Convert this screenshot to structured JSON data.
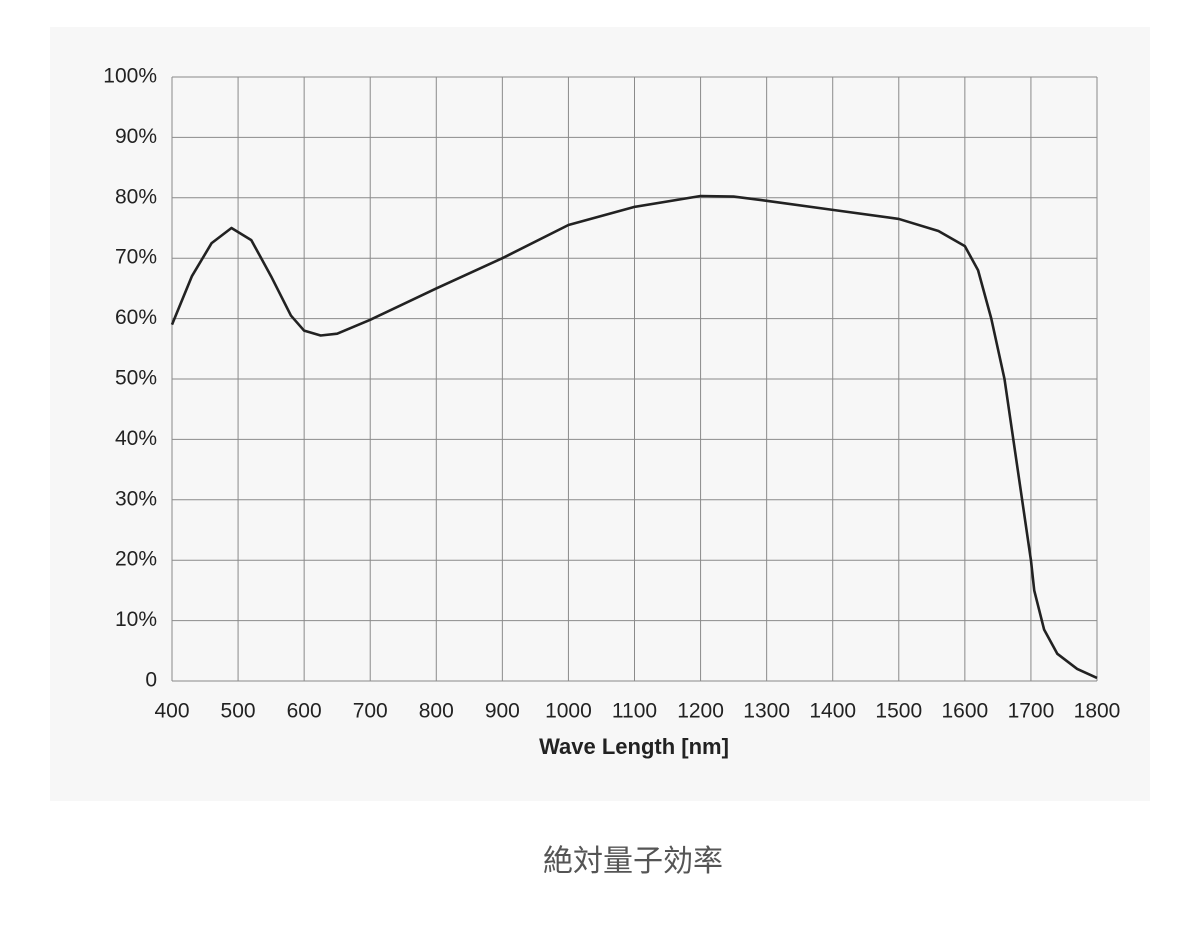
{
  "chart_data": {
    "type": "line",
    "x_label": "Wave Length [nm]",
    "caption": "絶対量子効率",
    "x": [
      400,
      430,
      460,
      490,
      520,
      550,
      580,
      600,
      625,
      650,
      700,
      800,
      900,
      1000,
      1100,
      1200,
      1250,
      1300,
      1400,
      1500,
      1560,
      1600,
      1620,
      1640,
      1660,
      1680,
      1700,
      1705,
      1720,
      1740,
      1770,
      1800
    ],
    "series": [
      {
        "color": "#222222",
        "values": [
          59,
          67,
          72.5,
          75,
          73,
          67,
          60.5,
          58,
          57.2,
          57.5,
          59.8,
          65,
          70,
          75.5,
          78.5,
          80.3,
          80.2,
          79.5,
          78,
          76.5,
          74.5,
          72,
          68,
          60,
          50,
          35,
          20,
          15,
          8.5,
          4.5,
          2,
          0.5
        ]
      }
    ],
    "xlim": [
      400,
      1800
    ],
    "xticks": [
      400,
      500,
      600,
      700,
      800,
      900,
      1000,
      1100,
      1200,
      1300,
      1400,
      1500,
      1600,
      1700,
      1800
    ],
    "ylim": [
      0,
      100
    ],
    "yticks": [
      0,
      {
        "value": 10,
        "label": "10%"
      },
      {
        "value": 20,
        "label": "20%"
      },
      {
        "value": 30,
        "label": "30%"
      },
      {
        "value": 40,
        "label": "40%"
      },
      {
        "value": 50,
        "label": "50%"
      },
      {
        "value": 60,
        "label": "60%"
      },
      {
        "value": 70,
        "label": "70%"
      },
      {
        "value": 80,
        "label": "80%"
      },
      {
        "value": 90,
        "label": "90%"
      },
      {
        "value": 100,
        "label": "100%"
      }
    ],
    "grid": true
  }
}
